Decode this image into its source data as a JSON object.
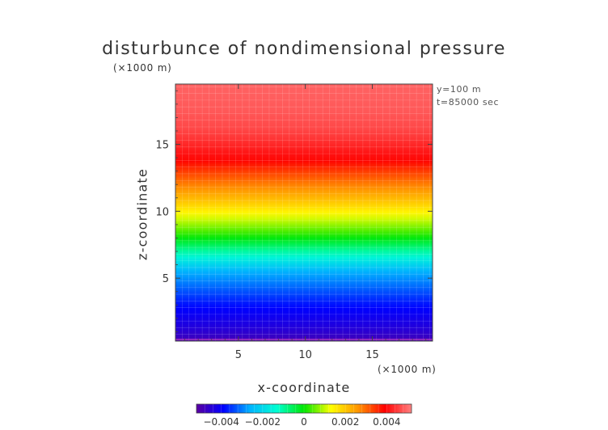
{
  "chart_data": {
    "type": "heatmap",
    "title": "disturbunce of nondimensional pressure",
    "xlabel": "x-coordinate",
    "ylabel": "z-coordinate",
    "x_scale_label": "(×1000 m)",
    "y_scale_label": "(×1000 m)",
    "annotations": [
      "y=100 m",
      "t=85000 sec"
    ],
    "xlim": [
      0.3,
      19.5
    ],
    "ylim": [
      0.3,
      19.5
    ],
    "xticks": [
      5,
      10,
      15
    ],
    "yticks": [
      5,
      10,
      15
    ],
    "colorbar": {
      "range": [
        -0.0052,
        0.0052
      ],
      "ticks": [
        -0.004,
        -0.002,
        0,
        0.002,
        0.004
      ],
      "tick_labels": [
        "−0.004",
        "−0.002",
        "0",
        "0.002",
        "0.004"
      ],
      "colors": [
        "#5a00a0",
        "#0000ff",
        "#00b4ff",
        "#00ffd2",
        "#00e600",
        "#ffff00",
        "#ff9600",
        "#ff0000",
        "#ff8080"
      ]
    },
    "field_profile": {
      "description_axis": "z",
      "z": [
        0.3,
        1.0,
        3.0,
        5.5,
        7.0,
        8.5,
        11.0,
        14.0,
        16.0,
        17.5,
        19.5
      ],
      "value": [
        -0.0049,
        -0.0045,
        -0.0038,
        -0.0026,
        -0.001,
        0.0004,
        0.0022,
        0.004,
        0.0046,
        0.0048,
        0.0049
      ]
    },
    "grid": true
  }
}
